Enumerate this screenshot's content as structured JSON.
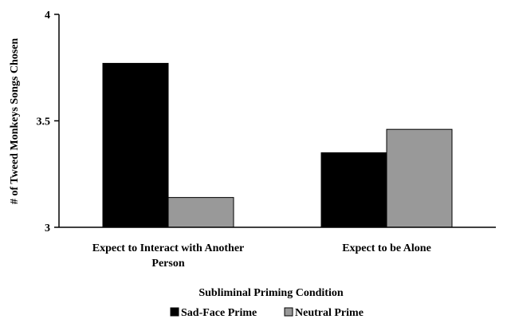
{
  "chart_data": {
    "type": "bar",
    "title": "",
    "xlabel": "Subliminal Priming Condition",
    "ylabel": "# of Tweed Monkeys Songs Chosen",
    "ylim": [
      3,
      4
    ],
    "yticks": [
      "3",
      "3.5",
      "4"
    ],
    "categories": [
      [
        "Expect to Interact with Another",
        "Person"
      ],
      [
        "Expect to be Alone"
      ]
    ],
    "series": [
      {
        "name": "Sad-Face Prime",
        "color": "#000000",
        "values": [
          3.77,
          3.35
        ]
      },
      {
        "name": "Neutral Prime",
        "color": "#999999",
        "values": [
          3.14,
          3.46
        ]
      }
    ],
    "grid": false,
    "legend": "bottom-center"
  }
}
